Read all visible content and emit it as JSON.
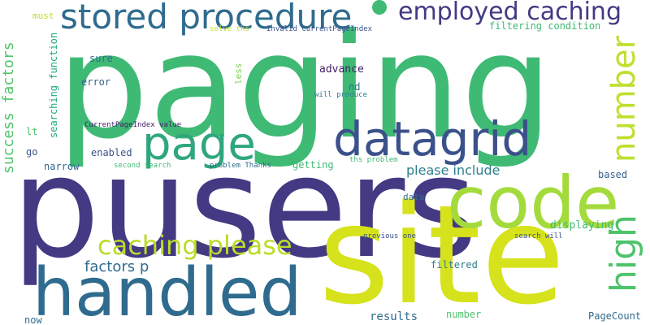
{
  "wordcloud": {
    "palette": {
      "green": "#3fba74",
      "purple": "#433a83",
      "lime": "#bde02e",
      "yellow": "#d6e21b",
      "teal": "#2a7f8e",
      "blue": "#2f6b8e",
      "dark": "#46206d",
      "mint": "#4ec36b",
      "aqua": "#22a884"
    },
    "words": [
      {
        "text": "paging",
        "color": "#3fba74"
      },
      {
        "text": "pusers",
        "color": "#433a83"
      },
      {
        "text": "site",
        "color": "#d6e21b"
      },
      {
        "text": "handled",
        "color": "#2f6b8e"
      },
      {
        "text": "code",
        "color": "#a4db3c"
      },
      {
        "text": "datagrid",
        "color": "#3b518b"
      },
      {
        "text": "page",
        "color": "#2fa77d"
      },
      {
        "text": "stored procedure",
        "color": "#2f6b8e"
      },
      {
        "text": "employed caching",
        "color": "#433a83"
      },
      {
        "text": "number",
        "color": "#bde02e"
      },
      {
        "text": "high",
        "color": "#4ec36b"
      },
      {
        "text": "caching please",
        "color": "#b8de29"
      },
      {
        "text": "please include",
        "color": "#2d7f8e"
      },
      {
        "text": "factors p",
        "color": "#2f6b8e"
      },
      {
        "text": "success factors",
        "color": "#50c46a"
      },
      {
        "text": "searching function",
        "color": "#22a884"
      },
      {
        "text": "CurrentPageIndex value",
        "color": "#46206d"
      },
      {
        "text": "filtering condition",
        "color": "#3fba74"
      },
      {
        "text": "solve ths",
        "color": "#bde02e"
      },
      {
        "text": "Invalid CurrentPageIndex",
        "color": "#3b518b"
      },
      {
        "text": "must",
        "color": "#b8de29"
      },
      {
        "text": "sure",
        "color": "#2d6f8e"
      },
      {
        "text": "error",
        "color": "#33638d"
      },
      {
        "text": "less",
        "color": "#7ad151"
      },
      {
        "text": "advance",
        "color": "#46206d"
      },
      {
        "text": "nd",
        "color": "#2d6f8e"
      },
      {
        "text": "will produce",
        "color": "#2a7f8e"
      },
      {
        "text": "lt",
        "color": "#4ec36b"
      },
      {
        "text": "enabled",
        "color": "#3b518b"
      },
      {
        "text": "go",
        "color": "#3b518b"
      },
      {
        "text": "narrow",
        "color": "#33638d"
      },
      {
        "text": "second search",
        "color": "#3fba74"
      },
      {
        "text": "problem Thanks",
        "color": "#2f6b8e"
      },
      {
        "text": "getting",
        "color": "#3fba74"
      },
      {
        "text": "ths problem",
        "color": "#3fba74"
      },
      {
        "text": "based",
        "color": "#33638d"
      },
      {
        "text": "data",
        "color": "#2d6f8e"
      },
      {
        "text": "displaying",
        "color": "#3fba74"
      },
      {
        "text": "previous one",
        "color": "#3b518b"
      },
      {
        "text": "search will",
        "color": "#3b518b"
      },
      {
        "text": "filtered",
        "color": "#2a7f8e"
      },
      {
        "text": "results",
        "color": "#2f6b8e"
      },
      {
        "text": "number",
        "color": "#4ec36b"
      },
      {
        "text": "PageCount",
        "color": "#2f6b8e"
      },
      {
        "text": "now",
        "color": "#2f6b8e"
      }
    ]
  }
}
